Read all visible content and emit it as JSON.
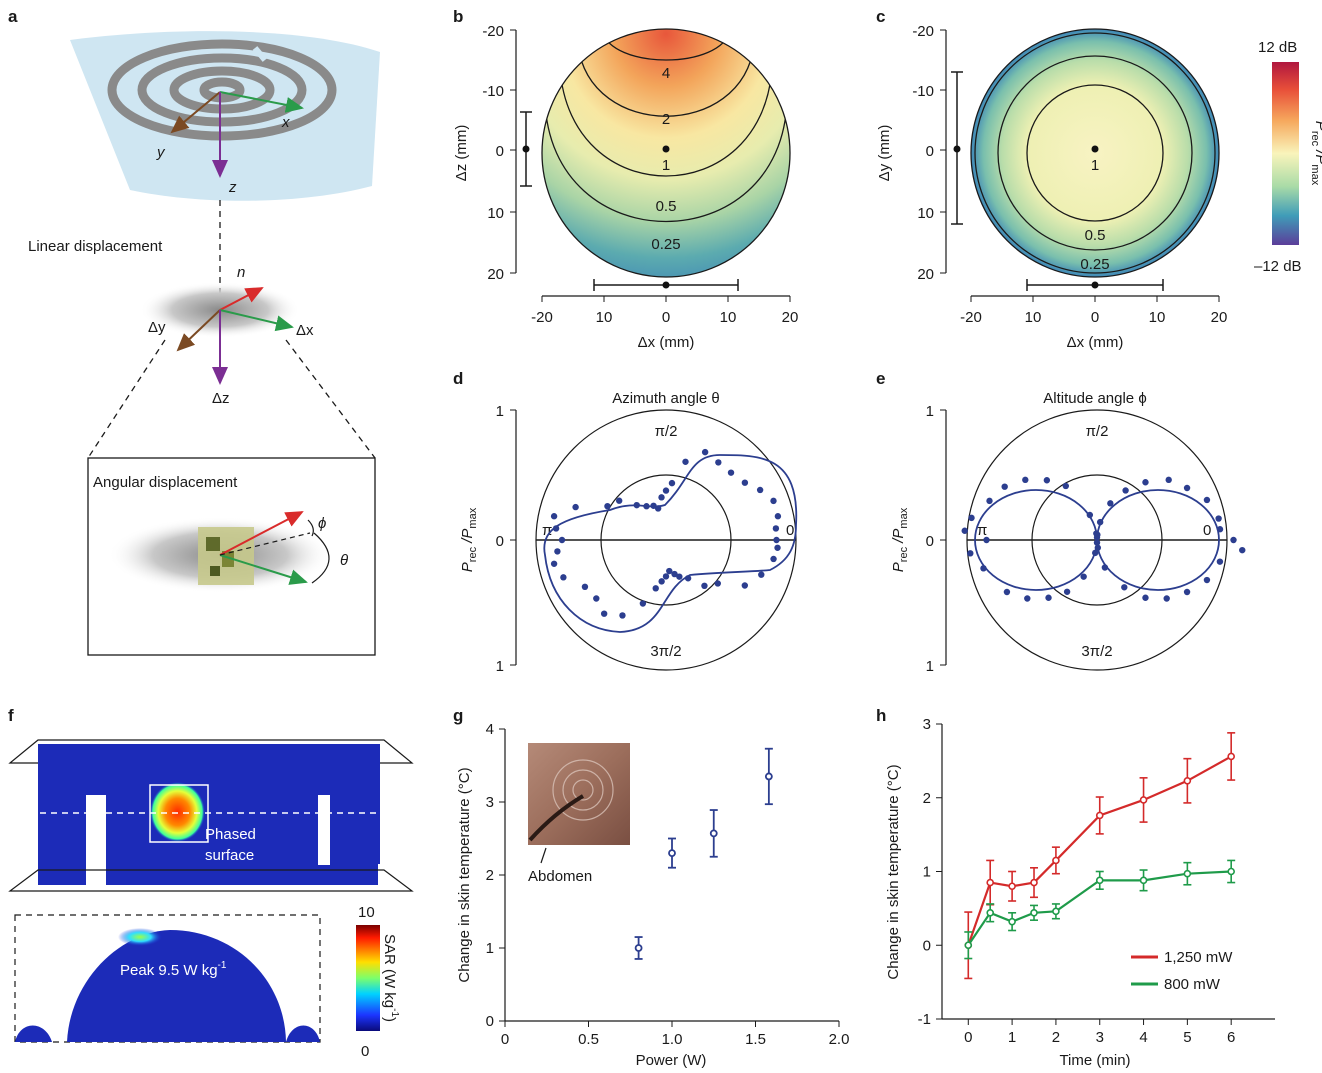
{
  "panels": {
    "a": {
      "letter": "a",
      "coil_axes": {
        "x": "x",
        "y": "y",
        "z": "z"
      },
      "linear_title": "Linear displacement",
      "local_axes": {
        "n": "n",
        "dx": "Δx",
        "dy": "Δy",
        "dz": "Δz"
      },
      "angular_title": "Angular displacement",
      "angle_phi": "ϕ",
      "angle_theta": "θ"
    },
    "b": {
      "letter": "b",
      "ylabel": "Δz (mm)",
      "xlabel": "Δx (mm)",
      "yticks": [
        "-20",
        "-10",
        "0",
        "10",
        "20"
      ],
      "xticks": [
        "-20",
        "10",
        "0",
        "10",
        "20"
      ],
      "contours": [
        "4",
        "2",
        "1",
        "0.5",
        "0.25"
      ]
    },
    "c": {
      "letter": "c",
      "ylabel": "Δy (mm)",
      "xlabel": "Δx (mm)",
      "yticks": [
        "-20",
        "-10",
        "0",
        "10",
        "20"
      ],
      "xticks": [
        "-20",
        "10",
        "0",
        "10",
        "20"
      ],
      "contours": [
        "1",
        "0.5",
        "0.25"
      ],
      "colorbar": {
        "top": "12 dB",
        "bottom": "–12 dB",
        "label_main": "P",
        "sub1": "rec",
        "sep": " /P",
        "sub2": "max"
      }
    },
    "d": {
      "letter": "d",
      "title": "Azimuth angle θ",
      "yticks": [
        "1",
        "0",
        "1"
      ],
      "angles": {
        "top": "π/2",
        "left": "π",
        "right": "0",
        "bottom": "3π/2"
      }
    },
    "e": {
      "letter": "e",
      "title": "Altitude angle ϕ",
      "yticks": [
        "1",
        "0",
        "1"
      ],
      "angles": {
        "top": "π/2",
        "left": "π",
        "right": "0",
        "bottom": "3π/2"
      }
    },
    "polar_ylabel": {
      "main": "P",
      "sub1": "rec",
      "sep": " /P",
      "sub2": "max"
    },
    "f": {
      "letter": "f",
      "surface_label_1": "Phased",
      "surface_label_2": "surface",
      "peak_label": "Peak 9.5 W kg",
      "peak_sup": "-1",
      "cbar_top": "10",
      "cbar_bottom": "0",
      "cbar_label": "SAR (W kg",
      "cbar_sup": "-1",
      "cbar_close": ")"
    },
    "g": {
      "letter": "g",
      "inset_label": "Abdomen",
      "xlabel": "Power (W)",
      "ylabel": "Change in skin temperature (°C)"
    },
    "h": {
      "letter": "h",
      "xlabel": "Time (min)",
      "ylabel": "Change in skin temperature (°C)"
    }
  },
  "chart_data": [
    {
      "panel": "g",
      "type": "scatter",
      "xlabel": "Power (W)",
      "ylabel": "Change in skin temperature (°C)",
      "xlim": [
        0,
        2.0
      ],
      "ylim": [
        0,
        4
      ],
      "xticks": [
        0,
        0.5,
        1.0,
        1.5,
        2.0
      ],
      "xtick_labels": [
        "0",
        "0.5",
        "1.0",
        "1.5",
        "2.0"
      ],
      "yticks": [
        0,
        1,
        2,
        3,
        4
      ],
      "x": [
        0.8,
        1.0,
        1.25,
        1.58
      ],
      "y": [
        1.0,
        2.3,
        2.57,
        3.35
      ],
      "yerr": [
        0.15,
        0.2,
        0.32,
        0.38
      ],
      "color": "#2c3e8f"
    },
    {
      "panel": "h",
      "type": "line",
      "xlabel": "Time (min)",
      "ylabel": "Change in skin temperature (°C)",
      "xlim": [
        -0.6,
        7.0
      ],
      "ylim": [
        -1,
        3
      ],
      "xticks": [
        0,
        1,
        2,
        3,
        4,
        5,
        6
      ],
      "yticks": [
        -1,
        0,
        1,
        2,
        3
      ],
      "legend": "bottom-right",
      "series": [
        {
          "name": "1,250 mW",
          "color": "#d42a2a",
          "x": [
            0,
            0.5,
            1,
            1.5,
            2,
            3,
            4,
            5,
            6
          ],
          "y": [
            0.0,
            0.85,
            0.8,
            0.85,
            1.15,
            1.76,
            1.97,
            2.23,
            2.56
          ],
          "yerr": [
            0.45,
            0.3,
            0.2,
            0.2,
            0.18,
            0.25,
            0.3,
            0.3,
            0.32
          ]
        },
        {
          "name": "800 mW",
          "color": "#1f9b4a",
          "x": [
            0,
            0.5,
            1,
            1.5,
            2,
            3,
            4,
            5,
            6
          ],
          "y": [
            0.0,
            0.44,
            0.32,
            0.44,
            0.46,
            0.88,
            0.88,
            0.97,
            1.0
          ],
          "yerr": [
            0.18,
            0.12,
            0.12,
            0.1,
            0.1,
            0.12,
            0.14,
            0.15,
            0.15
          ]
        }
      ]
    },
    {
      "panel": "d",
      "type": "scatter",
      "projection": "polar",
      "rlim": [
        0,
        1
      ],
      "color": "#2c3e8f",
      "theta_deg": [
        0,
        6,
        12,
        20,
        28,
        36,
        46,
        56,
        66,
        76,
        84,
        90,
        96,
        104,
        110,
        120,
        130,
        140,
        150,
        160,
        168,
        174,
        180,
        186,
        192,
        200,
        210,
        220,
        230,
        240,
        250,
        258,
        264,
        270,
        276,
        284,
        290,
        300,
        310,
        320,
        330,
        340,
        350,
        356
      ],
      "r": [
        0.85,
        0.85,
        0.88,
        0.88,
        0.82,
        0.75,
        0.72,
        0.72,
        0.74,
        0.62,
        0.44,
        0.38,
        0.33,
        0.25,
        0.28,
        0.3,
        0.35,
        0.47,
        0.52,
        0.74,
        0.88,
        0.85,
        0.8,
        0.84,
        0.88,
        0.84,
        0.72,
        0.7,
        0.74,
        0.67,
        0.52,
        0.38,
        0.32,
        0.28,
        0.24,
        0.27,
        0.3,
        0.34,
        0.46,
        0.52,
        0.7,
        0.78,
        0.84,
        0.86
      ]
    },
    {
      "panel": "e",
      "type": "scatter",
      "projection": "polar",
      "rlim": [
        0,
        1
      ],
      "color": "#2c3e8f",
      "theta_deg": [
        0,
        5,
        10,
        20,
        30,
        40,
        50,
        60,
        70,
        80,
        86,
        90,
        96,
        106,
        120,
        130,
        140,
        150,
        160,
        170,
        176,
        180,
        186,
        194,
        210,
        220,
        230,
        240,
        250,
        262,
        270,
        276,
        286,
        300,
        310,
        320,
        330,
        340,
        350,
        356
      ],
      "r": [
        1.05,
        0.95,
        0.95,
        0.9,
        0.8,
        0.72,
        0.58,
        0.44,
        0.3,
        0.14,
        0.04,
        0.02,
        0.05,
        0.2,
        0.48,
        0.6,
        0.72,
        0.82,
        0.88,
        0.98,
        1.02,
        0.85,
        0.98,
        0.9,
        0.8,
        0.7,
        0.58,
        0.46,
        0.3,
        0.1,
        0.02,
        0.06,
        0.22,
        0.42,
        0.58,
        0.7,
        0.8,
        0.9,
        0.96,
        1.12
      ]
    }
  ]
}
